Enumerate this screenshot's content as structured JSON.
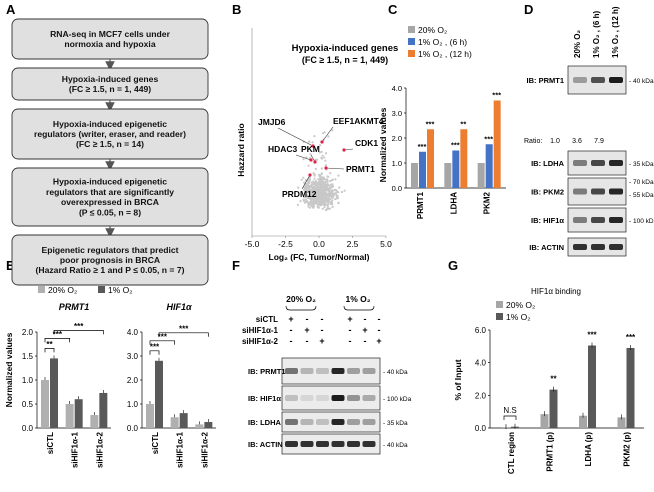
{
  "panel_labels": [
    "A",
    "B",
    "C",
    "D",
    "E",
    "F",
    "G"
  ],
  "panelA": {
    "boxes": [
      {
        "lines": [
          "RNA-seq in MCF7 cells under",
          "normoxia and hypoxia"
        ]
      },
      {
        "lines": [
          "Hypoxia-induced genes",
          "(FC ≥ 1.5, n = 1, 449)"
        ]
      },
      {
        "lines": [
          "Hypoxia-induced epigenetic",
          "regulators (writer, eraser, and reader)",
          "(FC ≥ 1.5, n = 14)"
        ]
      },
      {
        "lines": [
          "Hypoxia-induced epigenetic",
          "regulators that are significantly",
          "overexpressed in BRCA",
          "(P ≤ 0.05, n = 8)"
        ]
      },
      {
        "lines": [
          "Epigenetic regulators  that predict",
          "poor prognosis in BRCA",
          "(Hazard Ratio ≥ 1 and P ≤ 0.05, n = 7)"
        ]
      }
    ]
  },
  "chart_data": [
    {
      "panel": "B",
      "type": "scatter",
      "title": "Hypoxia-induced genes",
      "subtitle": "(FC ≥ 1.5, n = 1, 449)",
      "xlabel": "Log₂ (FC, Tumor/Normal)",
      "ylabel": "Hazzard ratio",
      "xlim": [
        -5.0,
        5.0
      ],
      "xticks": [
        "-5.0",
        "-2.5",
        "0.0",
        "2.5",
        "5.0"
      ],
      "point_labels": [
        {
          "name": "JMJD6",
          "x": 0.1,
          "y": 0.62
        },
        {
          "name": "EEF1AKMT4",
          "x": 0.9,
          "y": 0.6
        },
        {
          "name": "HDAC3",
          "x": 0.1,
          "y": 0.52
        },
        {
          "name": "PKM",
          "x": 0.7,
          "y": 0.52
        },
        {
          "name": "CDK1",
          "x": 2.8,
          "y": 0.57
        },
        {
          "name": "PRMT1",
          "x": 1.2,
          "y": 0.48
        },
        {
          "name": "PRDM12",
          "x": 0.2,
          "y": 0.44
        }
      ]
    },
    {
      "panel": "C",
      "type": "bar",
      "ylabel": "Normalized values",
      "ylim": [
        0,
        4.0
      ],
      "yticks": [
        "0.0",
        "1.0",
        "2.0",
        "3.0",
        "4.0"
      ],
      "categories": [
        "PRMT1",
        "LDHA",
        "PKM2"
      ],
      "series": [
        {
          "name": "20% O₂",
          "values": [
            1.0,
            1.0,
            1.0
          ],
          "color": "#a6a6a6"
        },
        {
          "name": "1% O₂ , (6 h)",
          "values": [
            1.45,
            1.5,
            1.75
          ],
          "color": "#4472c4"
        },
        {
          "name": "1% O₂ , (12 h)",
          "values": [
            2.35,
            2.35,
            3.5
          ],
          "color": "#ed7d31"
        }
      ],
      "significance": [
        [
          "***",
          "***"
        ],
        [
          "***",
          "**"
        ],
        [
          "***",
          "***"
        ]
      ]
    },
    {
      "panel": "E",
      "type": "bar",
      "ylabel": "Normalized values",
      "legend": [
        "20% O₂",
        "1% O₂"
      ],
      "subplots": [
        {
          "title": "PRMT1",
          "ylim": [
            0,
            2.0
          ],
          "yticks": [
            "0.0",
            "0.5",
            "1.0",
            "1.5",
            "2.0"
          ],
          "categories": [
            "siCTL",
            "siHIF1α-1",
            "siHIF1α-2"
          ],
          "series": [
            {
              "name": "20% O₂",
              "values": [
                1.0,
                0.5,
                0.27
              ]
            },
            {
              "name": "1% O₂",
              "values": [
                1.45,
                0.6,
                0.73
              ]
            }
          ],
          "brackets": [
            "**",
            "***",
            "***"
          ]
        },
        {
          "title": "HIF1α",
          "ylim": [
            0,
            4.0
          ],
          "yticks": [
            "0.0",
            "1.0",
            "2.0",
            "3.0",
            "4.0"
          ],
          "categories": [
            "siCTL",
            "siHIF1α-1",
            "siHIF1α-2"
          ],
          "series": [
            {
              "name": "20% O₂",
              "values": [
                1.0,
                0.45,
                0.15
              ]
            },
            {
              "name": "1% O₂",
              "values": [
                2.8,
                0.62,
                0.25
              ]
            }
          ],
          "brackets": [
            "***",
            "***",
            "***"
          ]
        }
      ]
    },
    {
      "panel": "G",
      "type": "bar",
      "title": "HIF1α binding",
      "ylabel": "% of Input",
      "ylim": [
        0,
        6.0
      ],
      "yticks": [
        "0.0",
        "2.0",
        "4.0",
        "6.0"
      ],
      "categories": [
        "CTL region",
        "PRMT1 (p)",
        "LDHA (p)",
        "PKM2 (p)"
      ],
      "series": [
        {
          "name": "20% O₂",
          "values": [
            0.05,
            0.85,
            0.75,
            0.65
          ],
          "color": "#a6a6a6"
        },
        {
          "name": "1% O₂",
          "values": [
            0.08,
            2.35,
            5.05,
            4.9
          ],
          "color": "#595959"
        }
      ],
      "significance": [
        "N.S",
        "**",
        "***",
        "***"
      ]
    }
  ],
  "panelD": {
    "conditions": [
      "20% O₂",
      "1% O₂ , (6 h)",
      "1% O₂ , (12 h)"
    ],
    "ratio_label": "Ratio:",
    "ratios": [
      "1.0",
      "3.6",
      "7.9"
    ],
    "blots": [
      {
        "label": "IB: PRMT1",
        "kda": [
          "40 kDa"
        ]
      },
      {
        "label": "IB: LDHA",
        "kda": [
          "35 kDa"
        ]
      },
      {
        "label": "IB: PKM2",
        "kda": [
          "70 kDa",
          "55 kDa"
        ]
      },
      {
        "label": "IB: HIF1α",
        "kda": [
          "100 kDa"
        ]
      },
      {
        "label": "IB: ACTIN",
        "kda": []
      }
    ]
  },
  "panelF": {
    "groups": [
      "20% O₂",
      "1% O₂"
    ],
    "rows": [
      {
        "label": "siCTL",
        "marks": [
          "+",
          "-",
          "-",
          "+",
          "-",
          "-"
        ]
      },
      {
        "label": "siHIF1α-1",
        "marks": [
          "-",
          "+",
          "-",
          "-",
          "+",
          "-"
        ]
      },
      {
        "label": "siHIF1α-2",
        "marks": [
          "-",
          "-",
          "+",
          "-",
          "-",
          "+"
        ]
      }
    ],
    "blots": [
      {
        "label": "IB: PRMT1",
        "kda": [
          "40 kDa"
        ]
      },
      {
        "label": "IB: HIF1α",
        "kda": [
          "100 kDa"
        ]
      },
      {
        "label": "IB: LDHA",
        "kda": [
          "35 kDa"
        ]
      },
      {
        "label": "IB: ACTIN",
        "kda": [
          "40 kDa"
        ]
      }
    ]
  }
}
